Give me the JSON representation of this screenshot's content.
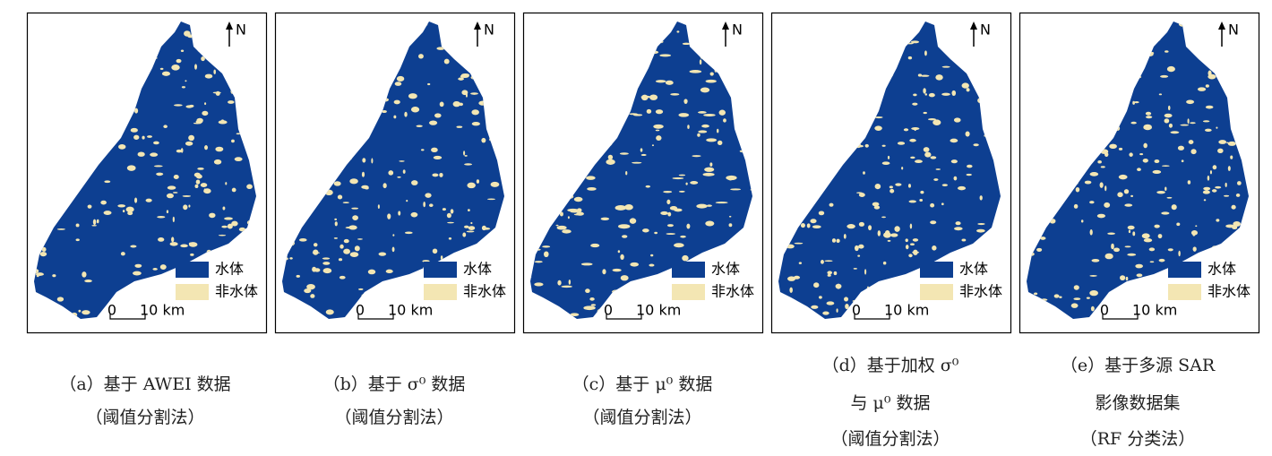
{
  "panels": [
    {
      "north": "N",
      "legend": [
        "水体",
        "非水体"
      ],
      "scale": [
        "0",
        "10 km"
      ],
      "caption": [
        "（a）基于 AWEI 数据",
        "（阈值分割法）"
      ]
    },
    {
      "north": "N",
      "legend": [
        "水体",
        "非水体"
      ],
      "scale": [
        "0",
        "10 km"
      ],
      "caption": [
        "（b）基于 σ⁰ 数据",
        "（阈值分割法）"
      ]
    },
    {
      "north": "N",
      "legend": [
        "水体",
        "非水体"
      ],
      "scale": [
        "0",
        "10 km"
      ],
      "caption": [
        "（c）基于 μ⁰ 数据",
        "（阈值分割法）"
      ]
    },
    {
      "north": "N",
      "legend": [
        "水体",
        "非水体"
      ],
      "scale": [
        "0",
        "10 km"
      ],
      "caption": [
        "（d）基于加权 σ⁰",
        "与 μ⁰ 数据",
        "（阈值分割法）"
      ]
    },
    {
      "north": "N",
      "legend": [
        "水体",
        "非水体"
      ],
      "scale": [
        "0",
        "10 km"
      ],
      "caption": [
        "（e）基于多源 SAR",
        "影像数据集",
        "（RF 分类法）"
      ]
    }
  ]
}
